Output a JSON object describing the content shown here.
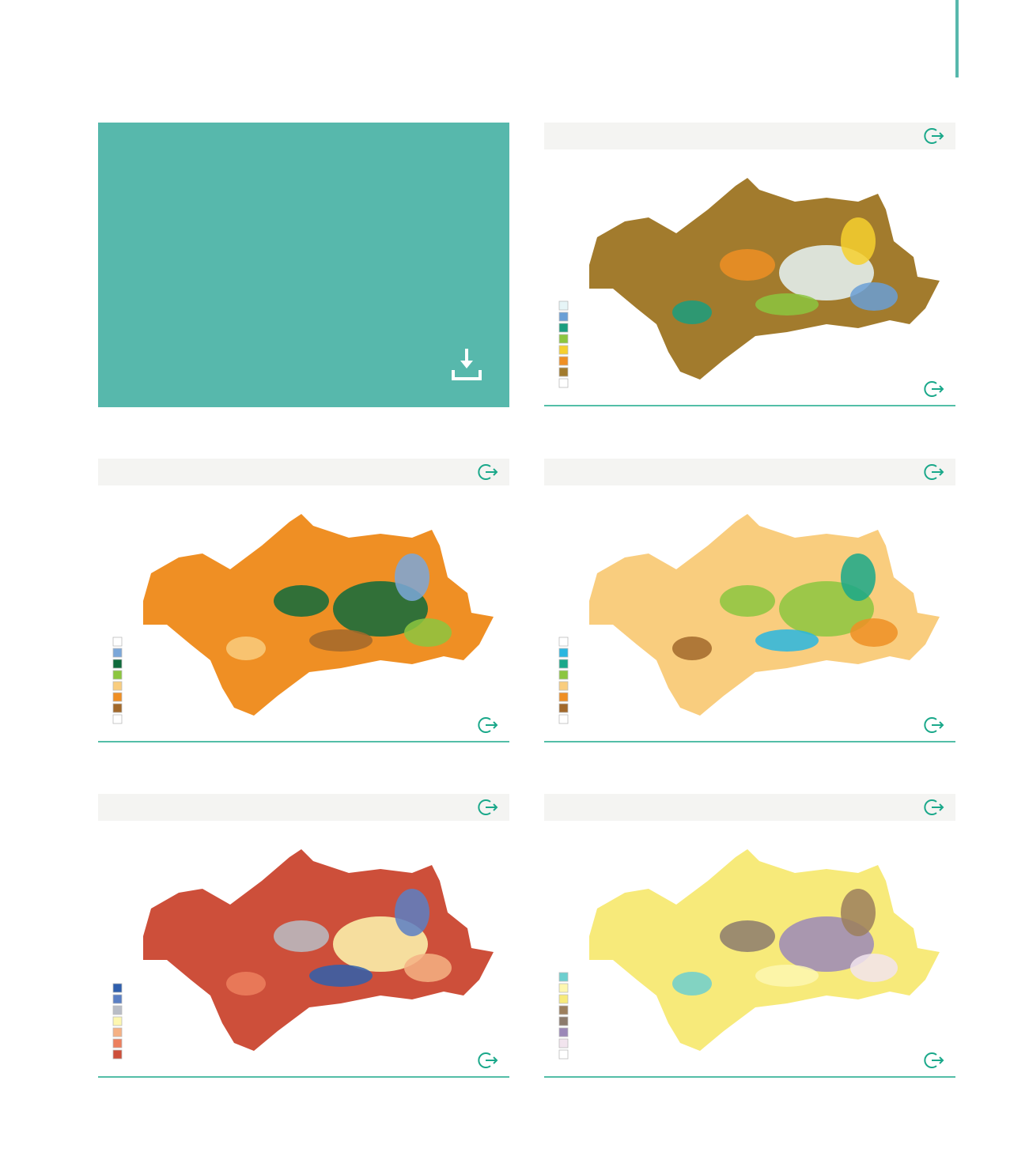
{
  "panels": [
    {
      "fill": "#a27b2d",
      "legend": [
        "#e6f5f7",
        "#6a9fd6",
        "#1a9e7f",
        "#8cc63f",
        "#f6d02f",
        "#ef8f24",
        "#a27b2d",
        "#ffffff"
      ]
    },
    {
      "fill": "#ef8f24",
      "legend": [
        "#ffffff",
        "#7ba7d9",
        "#0f6b3c",
        "#8cc63f",
        "#f9cd7e",
        "#ef8f24",
        "#a2692b",
        "#ffffff"
      ]
    },
    {
      "fill": "#f9cd7e",
      "legend": [
        "#ffffff",
        "#29b6e0",
        "#1aa88a",
        "#8cc63f",
        "#f9cd7e",
        "#ef8f24",
        "#a2692b",
        "#ffffff"
      ]
    },
    {
      "fill": "#cd4f3a",
      "legend": [
        "#2f5fad",
        "#5a7fc4",
        "#b9bdc6",
        "#fdf7b0",
        "#f5b184",
        "#ec7f5e",
        "#cd4f3a"
      ]
    },
    {
      "fill": "#f7ea7a",
      "legend": [
        "#6dcfcf",
        "#fdf7b0",
        "#f7ea7a",
        "#9c7f5d",
        "#8c7b6d",
        "#9b88b8",
        "#f2e4ee",
        "#ffffff"
      ]
    }
  ]
}
